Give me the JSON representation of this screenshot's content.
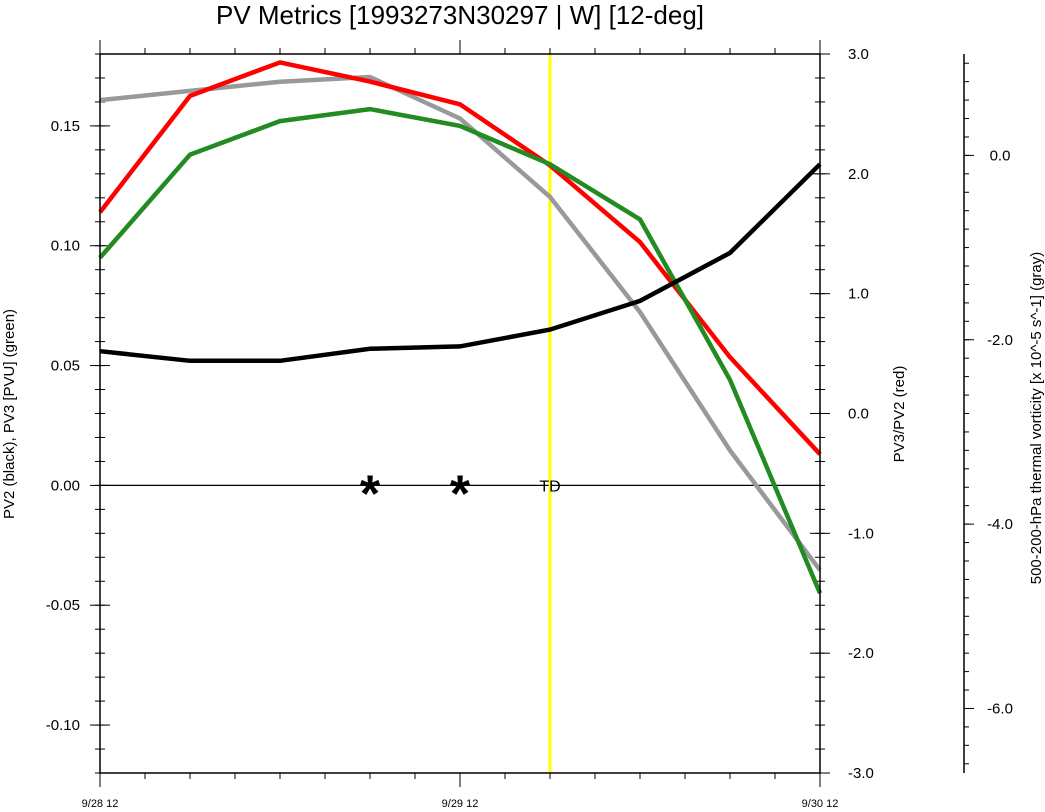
{
  "chart_data": {
    "type": "line",
    "title": "PV Metrics [1993273N30297 | W] [12-deg]",
    "x": [
      "9/28 12",
      "9/28 18",
      "9/29 00",
      "9/29 06",
      "9/29 12",
      "9/29 18",
      "9/30 00",
      "9/30 06",
      "9/30 12"
    ],
    "x_tick_labels": [
      "9/28 12",
      "9/29 12",
      "9/30 12"
    ],
    "axes": {
      "left": {
        "label": "PV2 (black), PV3 [PVU] (green)",
        "ylim": [
          -0.12,
          0.18
        ],
        "ticks": [
          -0.1,
          -0.05,
          0.0,
          0.05,
          0.1,
          0.15
        ],
        "tick_labels": [
          "-0.10",
          "-0.05",
          "0.00",
          "0.05",
          "0.10",
          "0.15"
        ]
      },
      "right": {
        "label": "PV3/PV2 (red)",
        "ylim": [
          -3.0,
          3.0
        ],
        "ticks": [
          -3.0,
          -2.0,
          -1.0,
          0.0,
          1.0,
          2.0,
          3.0
        ],
        "tick_labels": [
          "-3.0",
          "-2.0",
          "-1.0",
          "0.0",
          "1.0",
          "2.0",
          "3.0"
        ]
      },
      "far_right": {
        "label": "500-200-hPa thermal vorticity [x 10^-5 s^-1] (gray)",
        "ylim": [
          -6.7,
          1.1
        ],
        "ticks": [
          -6.0,
          -4.0,
          -2.0,
          0.0
        ],
        "tick_labels": [
          "-6.0",
          "-4.0",
          "-2.0",
          "0.0"
        ]
      }
    },
    "series": [
      {
        "color": "#000000",
        "axis": "left",
        "values": [
          0.056,
          0.052,
          0.052,
          0.057,
          0.058,
          0.065,
          0.077,
          0.097,
          0.134
        ]
      },
      {
        "color": "#228B22",
        "axis": "left",
        "values": [
          0.095,
          0.138,
          0.152,
          0.157,
          0.15,
          0.134,
          0.111,
          0.044,
          -0.045
        ]
      },
      {
        "color": "#ff0000",
        "axis": "right",
        "values": [
          1.68,
          2.65,
          2.93,
          2.77,
          2.58,
          2.07,
          1.43,
          0.47,
          -0.34
        ]
      },
      {
        "color": "#999999",
        "axis": "far_right",
        "values": [
          0.6,
          0.7,
          0.8,
          0.85,
          0.4,
          -0.45,
          -1.7,
          -3.2,
          -4.5
        ]
      }
    ],
    "zero_line": 0,
    "vertical_marker": {
      "x_index": 5.0,
      "color": "#ffff00"
    },
    "markers": [
      {
        "symbol": "*",
        "x_index": 3.0,
        "y": 0.0
      },
      {
        "symbol": "*",
        "x_index": 4.0,
        "y": 0.0
      }
    ],
    "annotation": {
      "text": "TD",
      "x_index": 5.0,
      "y": 0.0
    },
    "grid": false
  }
}
